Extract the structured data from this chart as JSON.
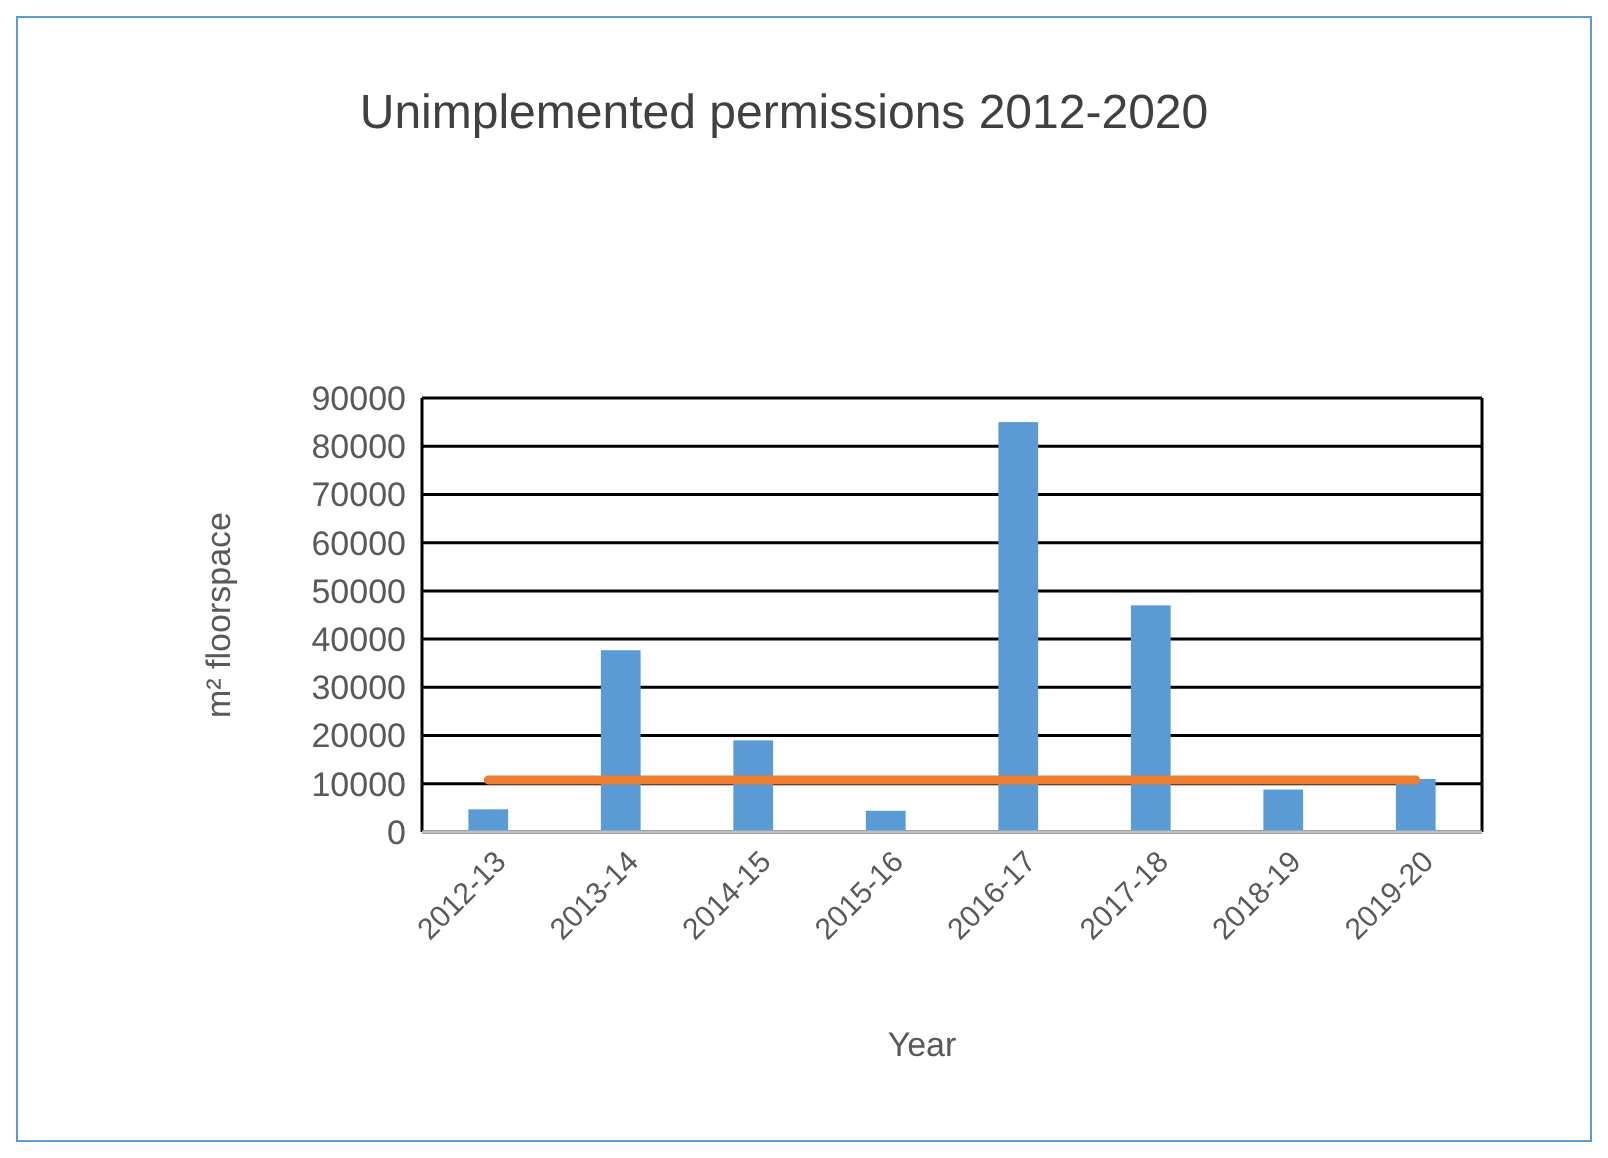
{
  "chart_data": {
    "type": "bar",
    "title": "Unimplemented permissions 2012-2020",
    "xlabel": "Year",
    "ylabel": "m² floorspace",
    "categories": [
      "2012-13",
      "2013-14",
      "2014-15",
      "2015-16",
      "2016-17",
      "2017-18",
      "2018-19",
      "2019-20"
    ],
    "series": [
      {
        "color": "#5b9bd5",
        "values": [
          4700,
          37700,
          19000,
          4400,
          85000,
          47000,
          8800,
          11000
        ]
      },
      {
        "type": "line",
        "color": "#ed7d31",
        "values": [
          10800,
          10800,
          10800,
          10800,
          10800,
          10800,
          10800,
          10800
        ]
      }
    ],
    "ylim": [
      0,
      90000
    ],
    "yticks": [
      0,
      10000,
      20000,
      30000,
      40000,
      50000,
      60000,
      70000,
      80000,
      90000
    ],
    "grid": "y"
  }
}
